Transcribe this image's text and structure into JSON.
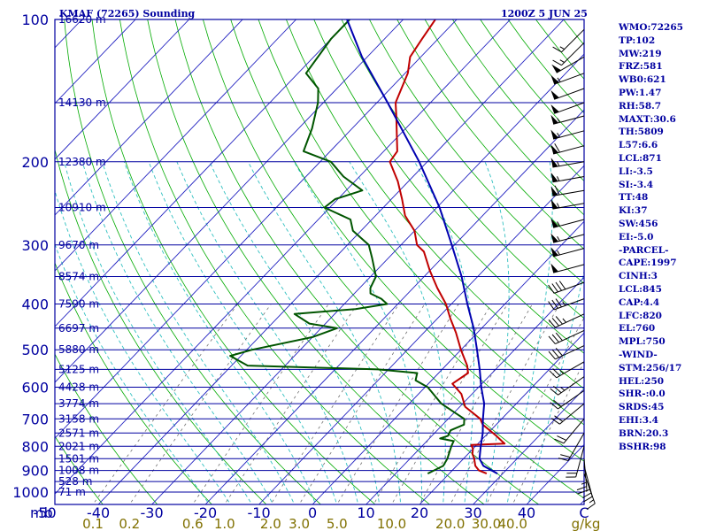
{
  "chart_data": {
    "type": "line",
    "title": "KMAF (72265) Sounding",
    "timestamp": "1200Z  5 JUN 25",
    "pressure_axis": {
      "unit_label": "mb",
      "ticks": [
        100,
        200,
        300,
        400,
        500,
        600,
        700,
        800,
        900,
        1000
      ],
      "range": [
        1050,
        100
      ],
      "scale": "log"
    },
    "temperature_axis": {
      "ticks": [
        -50,
        -40,
        -30,
        -20,
        -10,
        0,
        10,
        20,
        30,
        40
      ],
      "unit_label": "C",
      "skew": true
    },
    "mixing_ratio_axis": {
      "ticks": [
        "0.1",
        "0.2",
        "0.6",
        "1.0",
        "2.0",
        "3.0",
        "5.0",
        "10.0",
        "20.0",
        "30.0",
        "40.0"
      ],
      "unit_label": "g/kg"
    },
    "height_labels": [
      {
        "p": 100,
        "label": "16620 m"
      },
      {
        "p": 150,
        "label": "14130 m"
      },
      {
        "p": 200,
        "label": "12380 m"
      },
      {
        "p": 250,
        "label": "10910 m"
      },
      {
        "p": 300,
        "label": "9670 m"
      },
      {
        "p": 350,
        "label": "8574 m"
      },
      {
        "p": 400,
        "label": "7590 m"
      },
      {
        "p": 450,
        "label": "6697 m"
      },
      {
        "p": 500,
        "label": "5880 m"
      },
      {
        "p": 550,
        "label": "5125 m"
      },
      {
        "p": 600,
        "label": "4428 m"
      },
      {
        "p": 650,
        "label": "3774 m"
      },
      {
        "p": 700,
        "label": "3158 m"
      },
      {
        "p": 750,
        "label": "2571 m"
      },
      {
        "p": 800,
        "label": "2021 m"
      },
      {
        "p": 850,
        "label": "1501 m"
      },
      {
        "p": 900,
        "label": "1008 m"
      },
      {
        "p": 950,
        "label": "528 m"
      },
      {
        "p": 1000,
        "label": "71 m"
      }
    ],
    "series": [
      {
        "name": "Temperature",
        "color": "#c00000",
        "points": [
          {
            "p": 914,
            "t": 27.0
          },
          {
            "p": 900,
            "t": 25.0
          },
          {
            "p": 880,
            "t": 23.5
          },
          {
            "p": 850,
            "t": 22.0
          },
          {
            "p": 830,
            "t": 20.8
          },
          {
            "p": 810,
            "t": 20.0
          },
          {
            "p": 795,
            "t": 19.0
          },
          {
            "p": 790,
            "t": 25.0
          },
          {
            "p": 780,
            "t": 24.0
          },
          {
            "p": 760,
            "t": 22.0
          },
          {
            "p": 720,
            "t": 17.5
          },
          {
            "p": 700,
            "t": 16.0
          },
          {
            "p": 660,
            "t": 11.0
          },
          {
            "p": 620,
            "t": 8.0
          },
          {
            "p": 590,
            "t": 4.5
          },
          {
            "p": 560,
            "t": 5.5
          },
          {
            "p": 540,
            "t": 4.0
          },
          {
            "p": 500,
            "t": 0.0
          },
          {
            "p": 460,
            "t": -4.0
          },
          {
            "p": 430,
            "t": -7.5
          },
          {
            "p": 400,
            "t": -11.0
          },
          {
            "p": 370,
            "t": -15.5
          },
          {
            "p": 340,
            "t": -20.0
          },
          {
            "p": 310,
            "t": -24.5
          },
          {
            "p": 300,
            "t": -27.0
          },
          {
            "p": 280,
            "t": -30.0
          },
          {
            "p": 260,
            "t": -34.5
          },
          {
            "p": 240,
            "t": -38.0
          },
          {
            "p": 220,
            "t": -42.0
          },
          {
            "p": 200,
            "t": -47.0
          },
          {
            "p": 190,
            "t": -47.5
          },
          {
            "p": 160,
            "t": -54.0
          },
          {
            "p": 150,
            "t": -56.5
          },
          {
            "p": 130,
            "t": -59.5
          },
          {
            "p": 120,
            "t": -62.0
          },
          {
            "p": 110,
            "t": -63.0
          },
          {
            "p": 100,
            "t": -64.0
          }
        ]
      },
      {
        "name": "Dewpoint",
        "color": "#005500",
        "points": [
          {
            "p": 914,
            "t": 16.0
          },
          {
            "p": 880,
            "t": 17.5
          },
          {
            "p": 850,
            "t": 17.0
          },
          {
            "p": 800,
            "t": 15.5
          },
          {
            "p": 780,
            "t": 15.0
          },
          {
            "p": 770,
            "t": 12.0
          },
          {
            "p": 760,
            "t": 13.0
          },
          {
            "p": 740,
            "t": 12.5
          },
          {
            "p": 720,
            "t": 14.0
          },
          {
            "p": 700,
            "t": 13.0
          },
          {
            "p": 650,
            "t": 6.0
          },
          {
            "p": 600,
            "t": 0.5
          },
          {
            "p": 580,
            "t": -3.0
          },
          {
            "p": 560,
            "t": -4.0
          },
          {
            "p": 550,
            "t": -12.0
          },
          {
            "p": 540,
            "t": -37.0
          },
          {
            "p": 515,
            "t": -42.0
          },
          {
            "p": 500,
            "t": -39.0
          },
          {
            "p": 470,
            "t": -30.0
          },
          {
            "p": 450,
            "t": -27.0
          },
          {
            "p": 440,
            "t": -33.0
          },
          {
            "p": 420,
            "t": -37.5
          },
          {
            "p": 410,
            "t": -27.0
          },
          {
            "p": 400,
            "t": -22.0
          },
          {
            "p": 390,
            "t": -24.0
          },
          {
            "p": 380,
            "t": -27.0
          },
          {
            "p": 370,
            "t": -28.0
          },
          {
            "p": 350,
            "t": -29.0
          },
          {
            "p": 320,
            "t": -33.0
          },
          {
            "p": 300,
            "t": -36.0
          },
          {
            "p": 280,
            "t": -41.5
          },
          {
            "p": 265,
            "t": -44.0
          },
          {
            "p": 250,
            "t": -51.0
          },
          {
            "p": 240,
            "t": -50.5
          },
          {
            "p": 230,
            "t": -47.0
          },
          {
            "p": 215,
            "t": -53.0
          },
          {
            "p": 200,
            "t": -58.0
          },
          {
            "p": 190,
            "t": -65.0
          },
          {
            "p": 170,
            "t": -67.5
          },
          {
            "p": 150,
            "t": -71.0
          },
          {
            "p": 140,
            "t": -73.5
          },
          {
            "p": 130,
            "t": -78.5
          },
          {
            "p": 110,
            "t": -80.0
          },
          {
            "p": 100,
            "t": -80.0
          }
        ]
      },
      {
        "name": "Parcel",
        "color": "#0000b0",
        "points": [
          {
            "p": 914,
            "t": 29.0
          },
          {
            "p": 880,
            "t": 25.0
          },
          {
            "p": 850,
            "t": 23.0
          },
          {
            "p": 800,
            "t": 21.0
          },
          {
            "p": 750,
            "t": 19.0
          },
          {
            "p": 700,
            "t": 16.5
          },
          {
            "p": 650,
            "t": 14.0
          },
          {
            "p": 600,
            "t": 10.5
          },
          {
            "p": 550,
            "t": 7.0
          },
          {
            "p": 500,
            "t": 3.0
          },
          {
            "p": 450,
            "t": -1.5
          },
          {
            "p": 400,
            "t": -7.0
          },
          {
            "p": 350,
            "t": -13.0
          },
          {
            "p": 300,
            "t": -20.5
          },
          {
            "p": 250,
            "t": -29.5
          },
          {
            "p": 200,
            "t": -41.5
          },
          {
            "p": 150,
            "t": -58.0
          },
          {
            "p": 120,
            "t": -71.0
          },
          {
            "p": 100,
            "t": -80.5
          }
        ]
      }
    ],
    "wind_barbs": [
      {
        "p": 105,
        "dir": 225,
        "spd": 15
      },
      {
        "p": 112,
        "dir": 225,
        "spd": 15
      },
      {
        "p": 120,
        "dir": 240,
        "spd": 50
      },
      {
        "p": 130,
        "dir": 250,
        "spd": 55
      },
      {
        "p": 140,
        "dir": 250,
        "spd": 50
      },
      {
        "p": 150,
        "dir": 250,
        "spd": 50
      },
      {
        "p": 160,
        "dir": 255,
        "spd": 55
      },
      {
        "p": 172,
        "dir": 255,
        "spd": 55
      },
      {
        "p": 185,
        "dir": 255,
        "spd": 60
      },
      {
        "p": 200,
        "dir": 260,
        "spd": 55
      },
      {
        "p": 215,
        "dir": 260,
        "spd": 55
      },
      {
        "p": 230,
        "dir": 260,
        "spd": 60
      },
      {
        "p": 245,
        "dir": 260,
        "spd": 55
      },
      {
        "p": 265,
        "dir": 255,
        "spd": 55
      },
      {
        "p": 285,
        "dir": 255,
        "spd": 55
      },
      {
        "p": 305,
        "dir": 255,
        "spd": 55
      },
      {
        "p": 330,
        "dir": 255,
        "spd": 50
      },
      {
        "p": 360,
        "dir": 250,
        "spd": 40
      },
      {
        "p": 390,
        "dir": 250,
        "spd": 35
      },
      {
        "p": 420,
        "dir": 245,
        "spd": 35
      },
      {
        "p": 455,
        "dir": 245,
        "spd": 30
      },
      {
        "p": 490,
        "dir": 245,
        "spd": 30
      },
      {
        "p": 530,
        "dir": 240,
        "spd": 25
      },
      {
        "p": 570,
        "dir": 235,
        "spd": 25
      },
      {
        "p": 610,
        "dir": 235,
        "spd": 20
      },
      {
        "p": 650,
        "dir": 230,
        "spd": 20
      },
      {
        "p": 700,
        "dir": 220,
        "spd": 20
      },
      {
        "p": 750,
        "dir": 210,
        "spd": 20
      },
      {
        "p": 800,
        "dir": 195,
        "spd": 20
      },
      {
        "p": 850,
        "dir": 175,
        "spd": 25
      },
      {
        "p": 880,
        "dir": 165,
        "spd": 25
      },
      {
        "p": 914,
        "dir": 160,
        "spd": 15
      }
    ]
  },
  "indices": [
    "WMO:72265",
    "TP:102",
    "MW:219",
    "FRZ:581",
    "WB0:621",
    "PW:1.47",
    "RH:58.7",
    "MAXT:30.6",
    "TH:5809",
    "L57:6.6",
    "LCL:871",
    "LI:-3.5",
    "SI:-3.4",
    "TT:48",
    "KI:37",
    "SW:456",
    "EI:-5.0",
    "-PARCEL-",
    "CAPE:1997",
    "CINH:3",
    "LCL:845",
    "CAP:4.4",
    "LFC:820",
    "EL:760",
    "MPL:750",
    "-WIND-",
    "STM:256/17",
    "HEL:250",
    "SHR-:0.0",
    "SRDS:45",
    "EHI:3.4",
    "BRN:20.3",
    "BSHR:98"
  ],
  "colors": {
    "isobar": "#0000a0",
    "isotherm": "#2020c0",
    "dry_adiabat": "#00aa00",
    "moist_adiabat": "#30c0c0",
    "mixing_ratio": "#707070",
    "text": "#0000a0",
    "mixing_label": "#807000"
  }
}
